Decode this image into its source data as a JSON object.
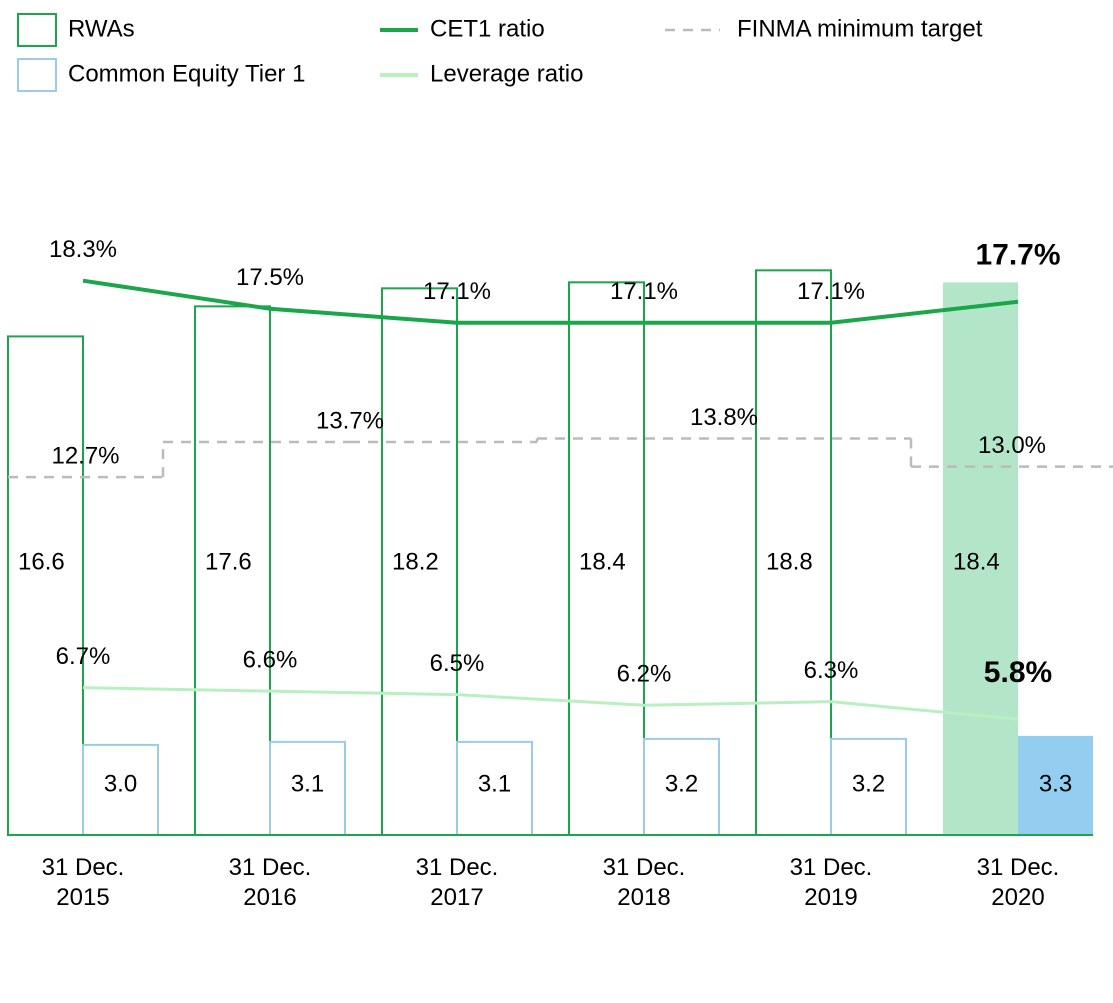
{
  "chart_data": {
    "type": "bar",
    "categories": [
      "31 Dec. 2015",
      "31 Dec. 2016",
      "31 Dec. 2017",
      "31 Dec. 2018",
      "31 Dec. 2019",
      "31 Dec. 2020"
    ],
    "ylim": [
      0,
      27.8
    ],
    "y2lim": [
      2.5,
      26.3
    ],
    "highlight_last": true,
    "series": [
      {
        "name": "RWAs",
        "type": "bar",
        "color": "#1aa64a",
        "highlight_color": "#b3e6c9",
        "values": [
          16.6,
          17.6,
          18.2,
          18.4,
          18.8,
          18.4
        ]
      },
      {
        "name": "Common Equity Tier 1",
        "type": "bar",
        "color": "#9ccbe8",
        "highlight_color": "#93cdf0",
        "values": [
          3.0,
          3.1,
          3.1,
          3.2,
          3.2,
          3.3
        ],
        "value_labels": [
          "3.0",
          "3.1",
          "3.1",
          "3.2",
          "3.2",
          "3.3"
        ]
      },
      {
        "name": "CET1 ratio",
        "type": "line",
        "axis": "y2",
        "color": "#1aa64a",
        "values": [
          18.3,
          17.5,
          17.1,
          17.1,
          17.1,
          17.7
        ],
        "value_labels": [
          "18.3%",
          "17.5%",
          "17.1%",
          "17.1%",
          "17.1%",
          "17.7%"
        ]
      },
      {
        "name": "Leverage ratio",
        "type": "line",
        "axis": "y2",
        "color": "#b8f0c0",
        "values": [
          6.7,
          6.6,
          6.5,
          6.2,
          6.3,
          5.8
        ],
        "value_labels": [
          "6.7%",
          "6.6%",
          "6.5%",
          "6.2%",
          "6.3%",
          "5.8%"
        ]
      },
      {
        "name": "FINMA minimum target",
        "type": "step",
        "axis": "y2",
        "color": "#bbbbbb",
        "values": [
          12.7,
          13.7,
          13.7,
          13.8,
          13.8,
          13.0
        ],
        "value_labels": [
          "12.7%",
          "13.7%",
          null,
          "13.8%",
          null,
          "13.0%"
        ]
      }
    ]
  }
}
